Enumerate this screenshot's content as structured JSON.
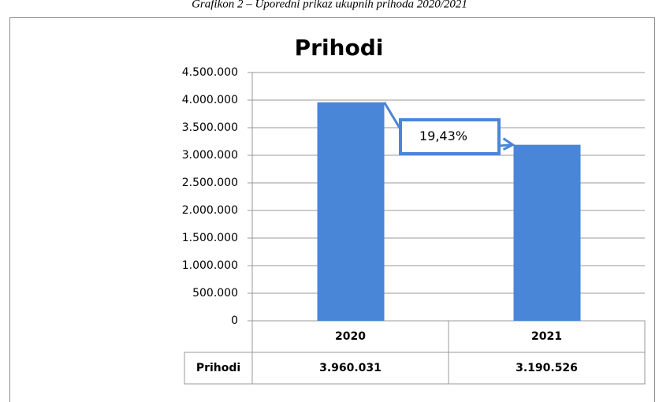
{
  "chart_data": {
    "type": "bar",
    "caption": "Grafikon 2 – Uporedni prikaz ukupnih prihoda 2020/2021",
    "title": "Prihodi",
    "categories": [
      "2020",
      "2021"
    ],
    "series": [
      {
        "name": "Prihodi",
        "color": "#4a86d8",
        "values": [
          3960031,
          3190526
        ],
        "value_labels": [
          "3.960.031",
          "3.190.526"
        ]
      }
    ],
    "annotation": "19,43%",
    "ylim": [
      0,
      4500000
    ],
    "yticks": [
      0,
      {
        "value": 500000,
        "label": "500.000"
      },
      {
        "value": 1000000,
        "label": "1.000.000"
      },
      {
        "value": 1500000,
        "label": "1.500.000"
      },
      {
        "value": 2000000,
        "label": "2.000.000"
      },
      {
        "value": 2500000,
        "label": "2.500.000"
      },
      {
        "value": 3000000,
        "label": "3.000.000"
      },
      {
        "value": 3500000,
        "label": "3.500.000"
      },
      {
        "value": 4000000,
        "label": "4.000.000"
      },
      {
        "value": 4500000,
        "label": "4.500.000"
      }
    ],
    "grid": true
  }
}
